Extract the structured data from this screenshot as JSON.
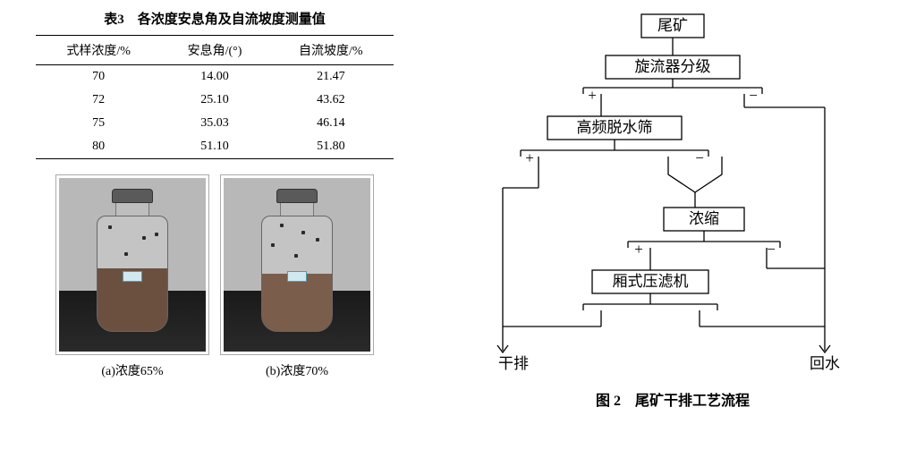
{
  "table": {
    "title": "表3　各浓度安息角及自流坡度测量值",
    "columns": [
      "式样浓度/%",
      "安息角/(°)",
      "自流坡度/%"
    ],
    "rows": [
      [
        "70",
        "14.00",
        "21.47"
      ],
      [
        "72",
        "25.10",
        "43.62"
      ],
      [
        "75",
        "35.03",
        "46.14"
      ],
      [
        "80",
        "51.10",
        "51.80"
      ]
    ]
  },
  "bottles": {
    "a": {
      "caption": "(a)浓度65%",
      "fill_pct": 55,
      "fill_color": "#6b5040"
    },
    "b": {
      "caption": "(b)浓度70%",
      "fill_pct": 50,
      "fill_color": "#7a5d4a"
    }
  },
  "flowchart": {
    "caption": "图 2　尾矿干排工艺流程",
    "nodes": {
      "input": "尾矿",
      "stage1": "旋流器分级",
      "stage2": "高频脱水筛",
      "stage3": "浓缩",
      "stage4": "厢式压滤机",
      "out_left": "干排",
      "out_right": "回水"
    },
    "signs": {
      "plus": "+",
      "minus": "−"
    },
    "style": {
      "stroke": "#000000",
      "stroke_width": 1.3,
      "font_size": 17,
      "bg": "#ffffff"
    }
  }
}
